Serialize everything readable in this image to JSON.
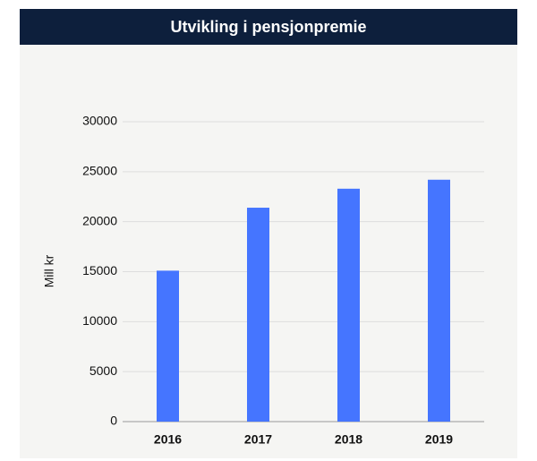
{
  "chart_data": {
    "type": "bar",
    "title": "Utvikling i pensjonpremie",
    "y_label": "Mill kr",
    "categories": [
      "2016",
      "2017",
      "2018",
      "2019"
    ],
    "values": [
      15100,
      21400,
      23300,
      24200
    ],
    "color": "#4575ff",
    "ylim": [
      0,
      30000
    ],
    "yticks": [
      0,
      5000,
      10000,
      15000,
      20000,
      25000,
      30000
    ],
    "grid": true
  }
}
